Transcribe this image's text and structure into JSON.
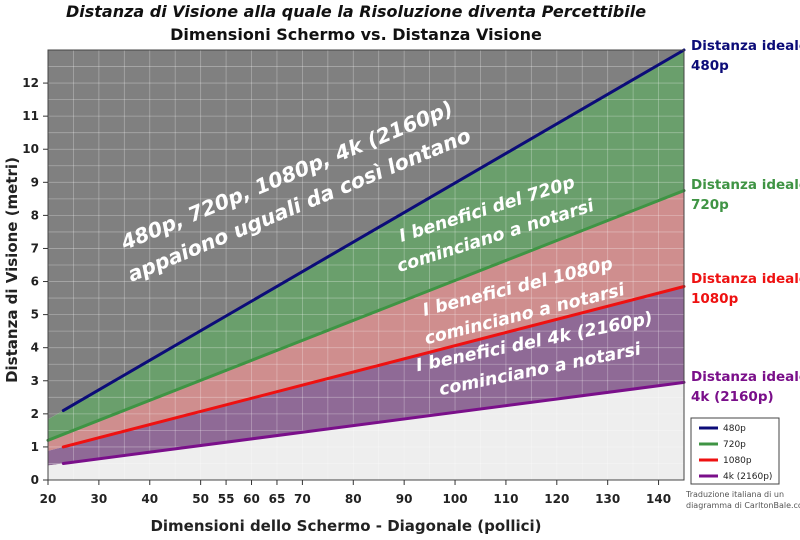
{
  "chart_data": {
    "type": "line",
    "title": "Distanza di Visione alla quale la Risoluzione diventa Percettibile",
    "subtitle": "Dimensioni Schermo vs. Distanza Visione",
    "xlabel": "Dimensioni dello Schermo - Diagonale (pollici)",
    "ylabel": "Distanza di Visione (metri)",
    "xlim": [
      20,
      145
    ],
    "ylim": [
      0,
      13
    ],
    "x_ticks": [
      20,
      30,
      40,
      50,
      55,
      60,
      65,
      70,
      80,
      90,
      100,
      110,
      120,
      130,
      140
    ],
    "y_ticks": [
      0,
      1,
      2,
      3,
      4,
      5,
      6,
      7,
      8,
      9,
      10,
      11,
      12
    ],
    "grid": true,
    "legend_position": "bottom-right",
    "series": [
      {
        "name": "480p",
        "color": "#0c0c78",
        "points": [
          [
            23,
            2.1
          ],
          [
            145,
            13.0
          ]
        ]
      },
      {
        "name": "720p",
        "color": "#3f9444",
        "points": [
          [
            20,
            1.2
          ],
          [
            145,
            8.75
          ]
        ]
      },
      {
        "name": "1080p",
        "color": "#ee1111",
        "points": [
          [
            23,
            1.0
          ],
          [
            145,
            5.85
          ]
        ]
      },
      {
        "name": "4k (2160p)",
        "color": "#7a0f8a",
        "points": [
          [
            23,
            0.5
          ],
          [
            145,
            2.95
          ]
        ]
      }
    ],
    "bands": [
      {
        "between": [
          "480p",
          "top"
        ],
        "color": "#808080"
      },
      {
        "between": [
          "720p",
          "480p"
        ],
        "color": "#6a9f6c"
      },
      {
        "between": [
          "1080p",
          "720p"
        ],
        "color": "#cf8e8e"
      },
      {
        "between": [
          "4k (2160p)",
          "1080p"
        ],
        "color": "#8f6a96"
      },
      {
        "between": [
          "bottom",
          "4k (2160p)"
        ],
        "color": "#eeeeee"
      }
    ],
    "annotations": [
      {
        "lines": [
          "480p, 720p, 1080p, 4k (2160p)",
          "appaiono uguali da così lontano"
        ]
      },
      {
        "lines": [
          "I benefici del 720p",
          "cominciano a notarsi"
        ]
      },
      {
        "lines": [
          "I benefici del 1080p",
          "cominciano a notarsi"
        ]
      },
      {
        "lines": [
          "I benefici del 4k (2160p)",
          "cominciano a notarsi"
        ]
      }
    ],
    "right_labels": [
      {
        "lines": [
          "Distanza ideale",
          "480p"
        ],
        "color": "#0c0c78"
      },
      {
        "lines": [
          "Distanza ideale",
          "720p"
        ],
        "color": "#3f9444"
      },
      {
        "lines": [
          "Distanza ideale",
          "1080p"
        ],
        "color": "#ee1111"
      },
      {
        "lines": [
          "Distanza ideale",
          "4k (2160p)"
        ],
        "color": "#7a0f8a"
      }
    ],
    "credit": [
      "Traduzione italiana di un",
      "diagramma di CarltonBale.com"
    ]
  }
}
